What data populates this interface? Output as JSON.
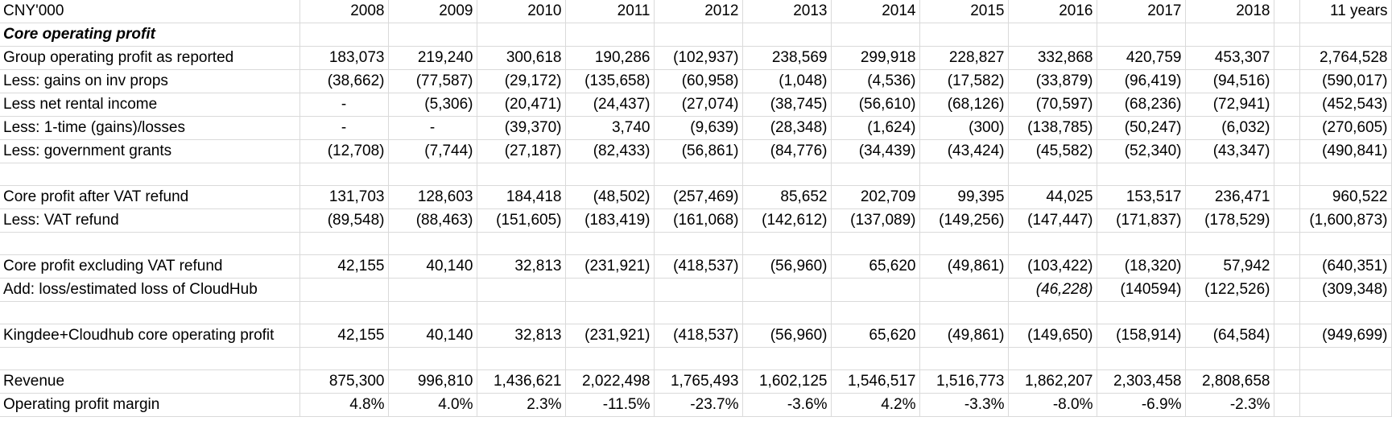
{
  "header": {
    "unit": "CNY'000",
    "years": [
      "2008",
      "2009",
      "2010",
      "2011",
      "2012",
      "2013",
      "2014",
      "2015",
      "2016",
      "2017",
      "2018"
    ],
    "total_label": "11 years"
  },
  "rows": [
    {
      "label": "Core operating profit",
      "values": [
        "",
        "",
        "",
        "",
        "",
        "",
        "",
        "",
        "",
        "",
        ""
      ],
      "total": ""
    },
    {
      "label": "Group operating profit as reported",
      "values": [
        "183,073",
        "219,240",
        "300,618",
        "190,286",
        "(102,937)",
        "238,569",
        "299,918",
        "228,827",
        "332,868",
        "420,759",
        "453,307"
      ],
      "total": "2,764,528"
    },
    {
      "label": "Less: gains on inv props",
      "values": [
        "(38,662)",
        "(77,587)",
        "(29,172)",
        "(135,658)",
        "(60,958)",
        "(1,048)",
        "(4,536)",
        "(17,582)",
        "(33,879)",
        "(96,419)",
        "(94,516)"
      ],
      "total": "(590,017)"
    },
    {
      "label": "Less net rental income",
      "values": [
        "-",
        "(5,306)",
        "(20,471)",
        "(24,437)",
        "(27,074)",
        "(38,745)",
        "(56,610)",
        "(68,126)",
        "(70,597)",
        "(68,236)",
        "(72,941)"
      ],
      "total": "(452,543)"
    },
    {
      "label": "Less: 1-time (gains)/losses",
      "values": [
        "-",
        "-",
        "(39,370)",
        "3,740",
        "(9,639)",
        "(28,348)",
        "(1,624)",
        "(300)",
        "(138,785)",
        "(50,247)",
        "(6,032)"
      ],
      "total": "(270,605)"
    },
    {
      "label": "Less: government grants",
      "values": [
        "(12,708)",
        "(7,744)",
        "(27,187)",
        "(82,433)",
        "(56,861)",
        "(84,776)",
        "(34,439)",
        "(43,424)",
        "(45,582)",
        "(52,340)",
        "(43,347)"
      ],
      "total": "(490,841)"
    },
    {
      "label": "",
      "values": [
        "",
        "",
        "",
        "",
        "",
        "",
        "",
        "",
        "",
        "",
        ""
      ],
      "total": ""
    },
    {
      "label": "Core profit after VAT refund",
      "values": [
        "131,703",
        "128,603",
        "184,418",
        "(48,502)",
        "(257,469)",
        "85,652",
        "202,709",
        "99,395",
        "44,025",
        "153,517",
        "236,471"
      ],
      "total": "960,522"
    },
    {
      "label": "Less: VAT refund",
      "values": [
        "(89,548)",
        "(88,463)",
        "(151,605)",
        "(183,419)",
        "(161,068)",
        "(142,612)",
        "(137,089)",
        "(149,256)",
        "(147,447)",
        "(171,837)",
        "(178,529)"
      ],
      "total": "(1,600,873)"
    },
    {
      "label": "",
      "values": [
        "",
        "",
        "",
        "",
        "",
        "",
        "",
        "",
        "",
        "",
        ""
      ],
      "total": ""
    },
    {
      "label": "Core profit excluding VAT refund",
      "values": [
        "42,155",
        "40,140",
        "32,813",
        "(231,921)",
        "(418,537)",
        "(56,960)",
        "65,620",
        "(49,861)",
        "(103,422)",
        "(18,320)",
        "57,942"
      ],
      "total": "(640,351)"
    },
    {
      "label": "Add:  loss/estimated loss of CloudHub",
      "values": [
        "",
        "",
        "",
        "",
        "",
        "",
        "",
        "",
        "(46,228)",
        "(140594)",
        "(122,526)"
      ],
      "total": "(309,348)"
    },
    {
      "label": "",
      "values": [
        "",
        "",
        "",
        "",
        "",
        "",
        "",
        "",
        "",
        "",
        ""
      ],
      "total": ""
    },
    {
      "label": "Kingdee+Cloudhub core operating profit",
      "values": [
        "42,155",
        "40,140",
        "32,813",
        "(231,921)",
        "(418,537)",
        "(56,960)",
        "65,620",
        "(49,861)",
        "(149,650)",
        "(158,914)",
        "(64,584)"
      ],
      "total": "(949,699)"
    },
    {
      "label": "",
      "values": [
        "",
        "",
        "",
        "",
        "",
        "",
        "",
        "",
        "",
        "",
        ""
      ],
      "total": ""
    },
    {
      "label": "Revenue",
      "values": [
        "875,300",
        "996,810",
        "1,436,621",
        "2,022,498",
        "1,765,493",
        "1,602,125",
        "1,546,517",
        "1,516,773",
        "1,862,207",
        "2,303,458",
        "2,808,658"
      ],
      "total": ""
    },
    {
      "label": "Operating profit margin",
      "values": [
        "4.8%",
        "4.0%",
        "2.3%",
        "-11.5%",
        "-23.7%",
        "-3.6%",
        "4.2%",
        "-3.3%",
        "-8.0%",
        "-6.9%",
        "-2.3%"
      ],
      "total": ""
    }
  ]
}
